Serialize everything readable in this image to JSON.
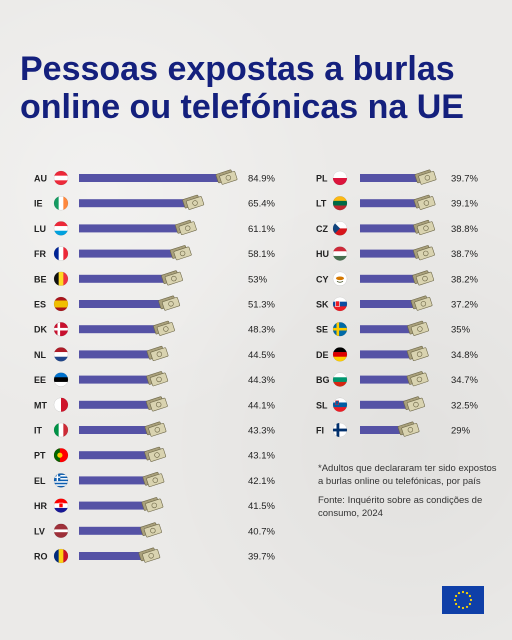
{
  "title": {
    "line1": "Pessoas expostas a burlas",
    "line2": "online ou telefónicas na UE"
  },
  "colors": {
    "title": "#14207d",
    "bar": "#5552a5",
    "text": "#222222",
    "background": "#ebeae8"
  },
  "footnote": {
    "note": "*Adultos que declararam ter sido expostos a burlas online ou telefónicas, por país",
    "source": "Fonte: Inquérito sobre as condições de consumo, 2024"
  },
  "logo": {
    "icon": "eu-flag-icon"
  },
  "chart_data": {
    "type": "bar",
    "orientation": "horizontal",
    "unit": "%",
    "columns": [
      {
        "categories": [
          "AU",
          "IE",
          "LU",
          "FR",
          "BE",
          "ES",
          "DK",
          "NL",
          "EE",
          "MT",
          "IT",
          "PT",
          "EL",
          "HR",
          "LV",
          "RO"
        ],
        "values": [
          84.9,
          65.4,
          61.1,
          58.1,
          53,
          51.3,
          48.3,
          44.5,
          44.3,
          44.1,
          43.3,
          43.1,
          42.1,
          41.5,
          40.7,
          39.7
        ],
        "labels": [
          "84.9%",
          "65.4%",
          "61.1%",
          "58.1%",
          "53%",
          "51.3%",
          "48.3%",
          "44.5%",
          "44.3%",
          "44.1%",
          "43.3%",
          "43.1%",
          "42.1%",
          "41.5%",
          "40.7%",
          "39.7%"
        ]
      },
      {
        "categories": [
          "PL",
          "LT",
          "CZ",
          "HU",
          "CY",
          "SK",
          "SE",
          "DE",
          "BG",
          "SL",
          "FI"
        ],
        "values": [
          39.7,
          39.1,
          38.8,
          38.7,
          38.2,
          37.2,
          35,
          34.8,
          34.7,
          32.5,
          29
        ],
        "labels": [
          "39.7%",
          "39.1%",
          "38.8%",
          "38.7%",
          "38.2%",
          "37.2%",
          "35%",
          "34.8%",
          "34.7%",
          "32.5%",
          "29%"
        ]
      }
    ]
  }
}
